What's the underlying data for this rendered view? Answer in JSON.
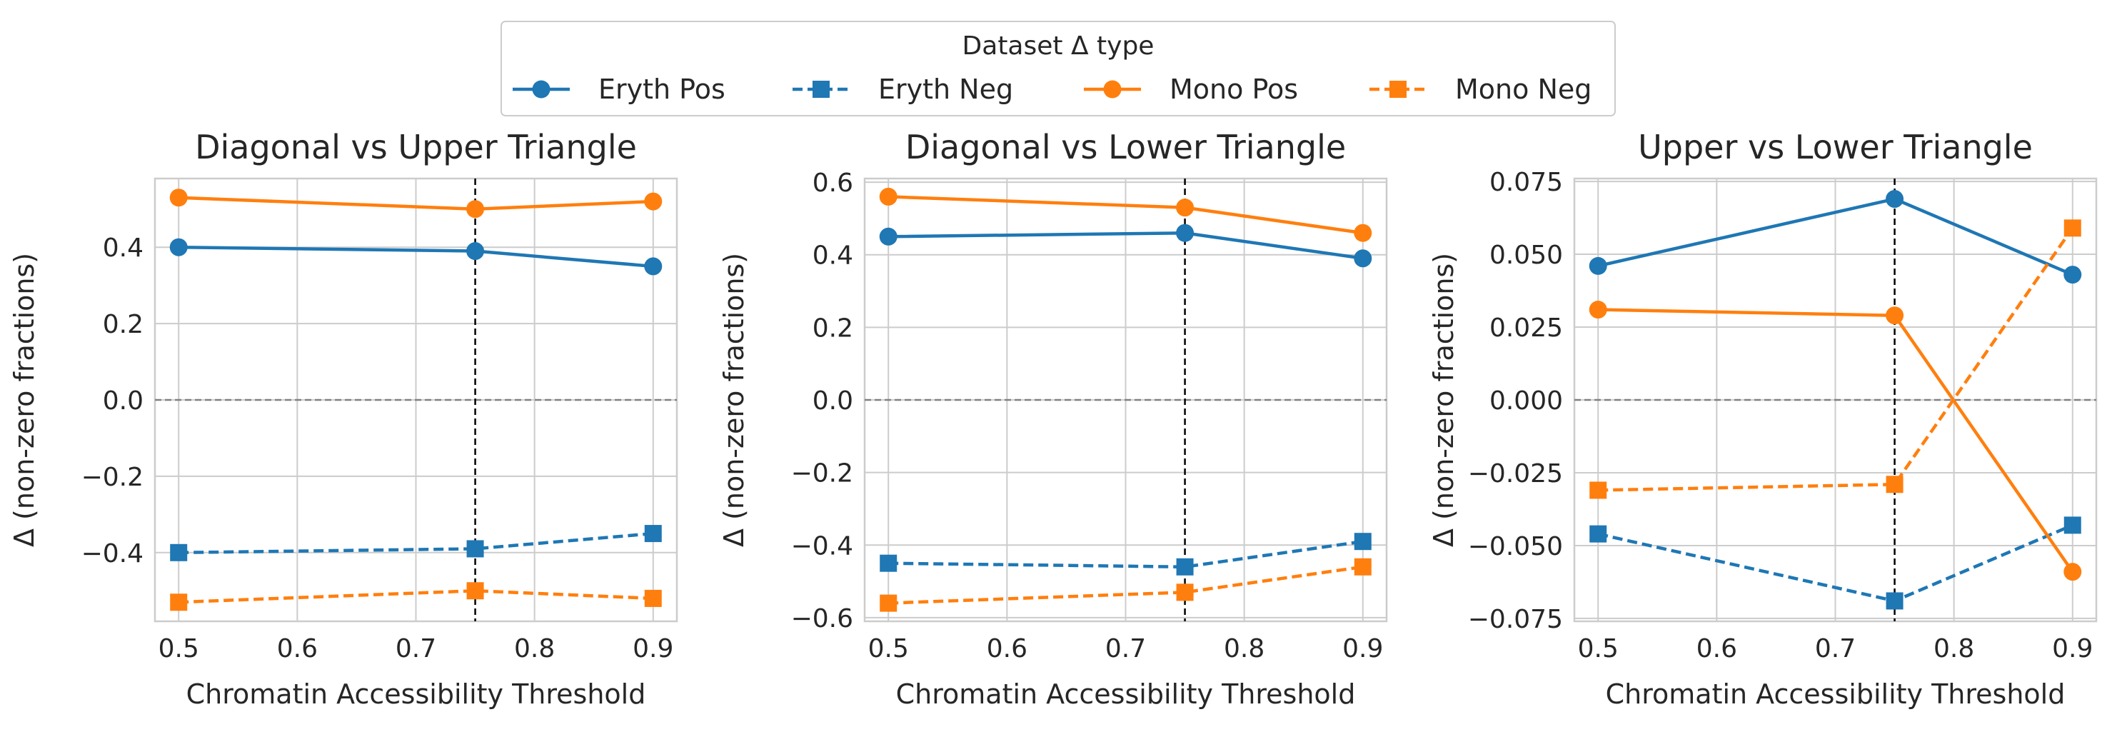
{
  "legend": {
    "title": "Dataset Δ type",
    "placement": "top-center",
    "entries": [
      {
        "label": "Eryth Pos",
        "color": "#1f77b4",
        "marker": "circle",
        "dashed": false
      },
      {
        "label": "Eryth Neg",
        "color": "#1f77b4",
        "marker": "square",
        "dashed": true
      },
      {
        "label": "Mono Pos",
        "color": "#ff7f0e",
        "marker": "circle",
        "dashed": false
      },
      {
        "label": "Mono Neg",
        "color": "#ff7f0e",
        "marker": "square",
        "dashed": true
      }
    ]
  },
  "chart_data": [
    {
      "type": "line",
      "title": "Diagonal vs Upper Triangle",
      "xlabel": "Chromatin Accessibility Threshold",
      "ylabel": "Δ (non-zero fractions)",
      "x": [
        0.5,
        0.75,
        0.9
      ],
      "xlim": [
        0.48,
        0.92
      ],
      "ylim": [
        -0.58,
        0.58
      ],
      "xticks": [
        "0.5",
        "0.6",
        "0.7",
        "0.8",
        "0.9"
      ],
      "xtick_values": [
        0.5,
        0.6,
        0.7,
        0.8,
        0.9
      ],
      "yticks": [
        "−0.4",
        "−0.2",
        "0.0",
        "0.2",
        "0.4"
      ],
      "ytick_values": [
        -0.4,
        -0.2,
        0.0,
        0.2,
        0.4
      ],
      "grid": true,
      "reference_lines": {
        "vertical_x": 0.75,
        "horizontal_y": 0.0
      },
      "series": [
        {
          "name": "Eryth Pos",
          "values": [
            0.4,
            0.39,
            0.35
          ]
        },
        {
          "name": "Eryth Neg",
          "values": [
            -0.4,
            -0.39,
            -0.35
          ]
        },
        {
          "name": "Mono Pos",
          "values": [
            0.53,
            0.5,
            0.52
          ]
        },
        {
          "name": "Mono Neg",
          "values": [
            -0.53,
            -0.5,
            -0.52
          ]
        }
      ]
    },
    {
      "type": "line",
      "title": "Diagonal vs Lower Triangle",
      "xlabel": "Chromatin Accessibility Threshold",
      "ylabel": "Δ (non-zero fractions)",
      "x": [
        0.5,
        0.75,
        0.9
      ],
      "xlim": [
        0.48,
        0.92
      ],
      "ylim": [
        -0.61,
        0.61
      ],
      "xticks": [
        "0.5",
        "0.6",
        "0.7",
        "0.8",
        "0.9"
      ],
      "xtick_values": [
        0.5,
        0.6,
        0.7,
        0.8,
        0.9
      ],
      "yticks": [
        "−0.6",
        "−0.4",
        "−0.2",
        "0.0",
        "0.2",
        "0.4",
        "0.6"
      ],
      "ytick_values": [
        -0.6,
        -0.4,
        -0.2,
        0.0,
        0.2,
        0.4,
        0.6
      ],
      "grid": true,
      "reference_lines": {
        "vertical_x": 0.75,
        "horizontal_y": 0.0
      },
      "series": [
        {
          "name": "Eryth Pos",
          "values": [
            0.45,
            0.46,
            0.39
          ]
        },
        {
          "name": "Eryth Neg",
          "values": [
            -0.45,
            -0.46,
            -0.39
          ]
        },
        {
          "name": "Mono Pos",
          "values": [
            0.56,
            0.53,
            0.46
          ]
        },
        {
          "name": "Mono Neg",
          "values": [
            -0.56,
            -0.53,
            -0.46
          ]
        }
      ]
    },
    {
      "type": "line",
      "title": "Upper vs Lower Triangle",
      "xlabel": "Chromatin Accessibility Threshold",
      "ylabel": "Δ (non-zero fractions)",
      "x": [
        0.5,
        0.75,
        0.9
      ],
      "xlim": [
        0.48,
        0.92
      ],
      "ylim": [
        -0.076,
        0.076
      ],
      "xticks": [
        "0.5",
        "0.6",
        "0.7",
        "0.8",
        "0.9"
      ],
      "xtick_values": [
        0.5,
        0.6,
        0.7,
        0.8,
        0.9
      ],
      "yticks": [
        "−0.075",
        "−0.050",
        "−0.025",
        "0.000",
        "0.025",
        "0.050",
        "0.075"
      ],
      "ytick_values": [
        -0.075,
        -0.05,
        -0.025,
        0.0,
        0.025,
        0.05,
        0.075
      ],
      "grid": true,
      "reference_lines": {
        "vertical_x": 0.75,
        "horizontal_y": 0.0
      },
      "series": [
        {
          "name": "Eryth Pos",
          "values": [
            0.046,
            0.069,
            0.043
          ]
        },
        {
          "name": "Eryth Neg",
          "values": [
            -0.046,
            -0.069,
            -0.043
          ]
        },
        {
          "name": "Mono Pos",
          "values": [
            0.031,
            0.029,
            -0.059
          ]
        },
        {
          "name": "Mono Neg",
          "values": [
            -0.031,
            -0.029,
            0.059
          ]
        }
      ]
    }
  ]
}
